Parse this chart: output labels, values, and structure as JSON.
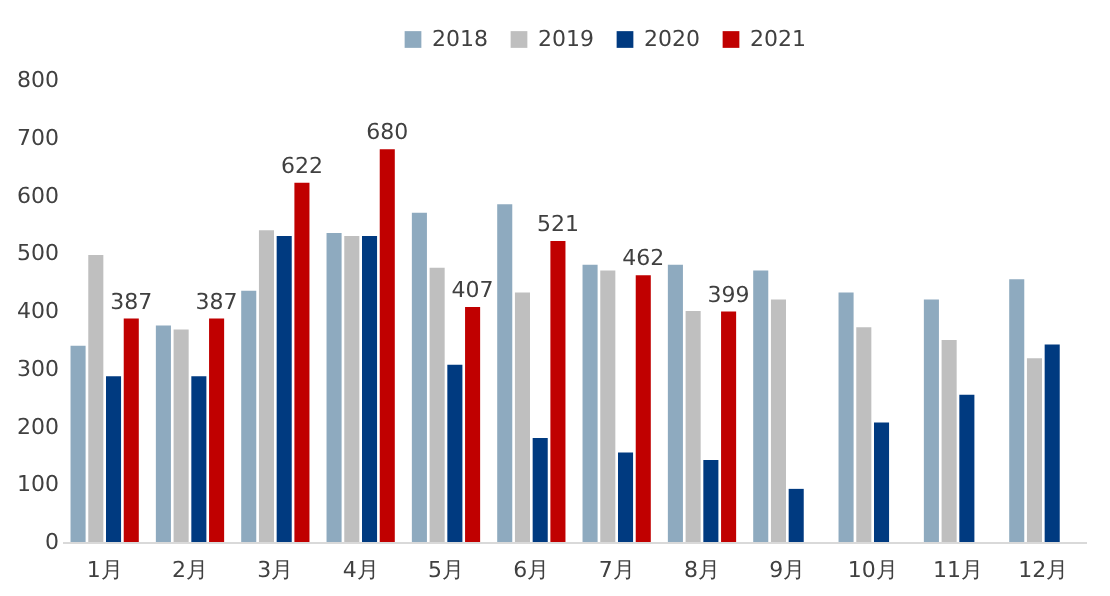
{
  "chart_data": {
    "type": "bar",
    "categories": [
      "1月",
      "2月",
      "3月",
      "4月",
      "5月",
      "6月",
      "7月",
      "8月",
      "9月",
      "10月",
      "11月",
      "12月"
    ],
    "series": [
      {
        "name": "2018",
        "color": "#8eaabf",
        "values": [
          340,
          375,
          435,
          535,
          570,
          585,
          480,
          480,
          470,
          432,
          420,
          455
        ]
      },
      {
        "name": "2019",
        "color": "#bfbfbf",
        "values": [
          497,
          368,
          540,
          530,
          475,
          432,
          470,
          400,
          420,
          372,
          350,
          318
        ]
      },
      {
        "name": "2020",
        "color": "#003a80",
        "values": [
          287,
          287,
          530,
          530,
          307,
          180,
          155,
          142,
          92,
          207,
          255,
          342
        ]
      },
      {
        "name": "2021",
        "color": "#c00000",
        "values": [
          387,
          387,
          622,
          680,
          407,
          521,
          462,
          399,
          null,
          null,
          null,
          null
        ],
        "value_labels": [
          "387",
          "387",
          "622",
          "680",
          "407",
          "521",
          "462",
          "399",
          null,
          null,
          null,
          null
        ]
      }
    ],
    "ylim": [
      0,
      800
    ],
    "yticks": [
      0,
      100,
      200,
      300,
      400,
      500,
      600,
      700,
      800
    ],
    "grid": false,
    "legend": "top"
  }
}
